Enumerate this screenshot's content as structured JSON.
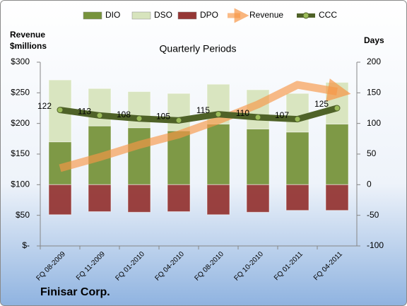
{
  "chart_data": {
    "type": "bar",
    "title": "Quarterly Periods",
    "ylabel": "Revenue\n$millions",
    "y2label": "Days",
    "caption": "Finisar Corp.",
    "categories": [
      "FQ 08-2009",
      "FQ 11-2009",
      "FQ 01-2010",
      "FQ 04-2010",
      "FQ 08-2010",
      "FQ 10-2010",
      "FQ 01-2011",
      "FQ 04-2011"
    ],
    "series": [
      {
        "name": "DIO",
        "type": "bar",
        "axis": "y2",
        "color": "#77933c",
        "values": [
          70,
          96,
          93,
          88,
          99,
          91,
          86,
          99
        ]
      },
      {
        "name": "DSO",
        "type": "bar",
        "axis": "y2",
        "color": "#d7e4bd",
        "values": [
          101,
          61,
          59,
          61,
          65,
          64,
          63,
          68
        ]
      },
      {
        "name": "DPO",
        "type": "bar",
        "axis": "y2",
        "color": "#953735",
        "values": [
          -49,
          -44,
          -45,
          -44,
          -49,
          -45,
          -42,
          -42
        ]
      },
      {
        "name": "Revenue",
        "type": "line",
        "color": "#f79646",
        "values": [
          127,
          145,
          165,
          182,
          205,
          231,
          263,
          252
        ]
      },
      {
        "name": "CCC",
        "type": "line",
        "axis": "y2",
        "color": "#4f6228",
        "values": [
          122,
          113,
          108,
          105,
          115,
          110,
          107,
          125
        ]
      }
    ],
    "ylim": [
      0,
      300
    ],
    "yticks": [
      {
        "value": 0,
        "label": "$-"
      },
      {
        "value": 50,
        "label": "$50"
      },
      {
        "value": 100,
        "label": "$100"
      },
      {
        "value": 150,
        "label": "$150"
      },
      {
        "value": 200,
        "label": "$200"
      },
      {
        "value": 250,
        "label": "$250"
      },
      {
        "value": 300,
        "label": "$300"
      }
    ],
    "y2lim": [
      -100,
      200
    ],
    "y2ticks": [
      -100,
      -50,
      0,
      50,
      100,
      150,
      200
    ],
    "grid": false
  }
}
